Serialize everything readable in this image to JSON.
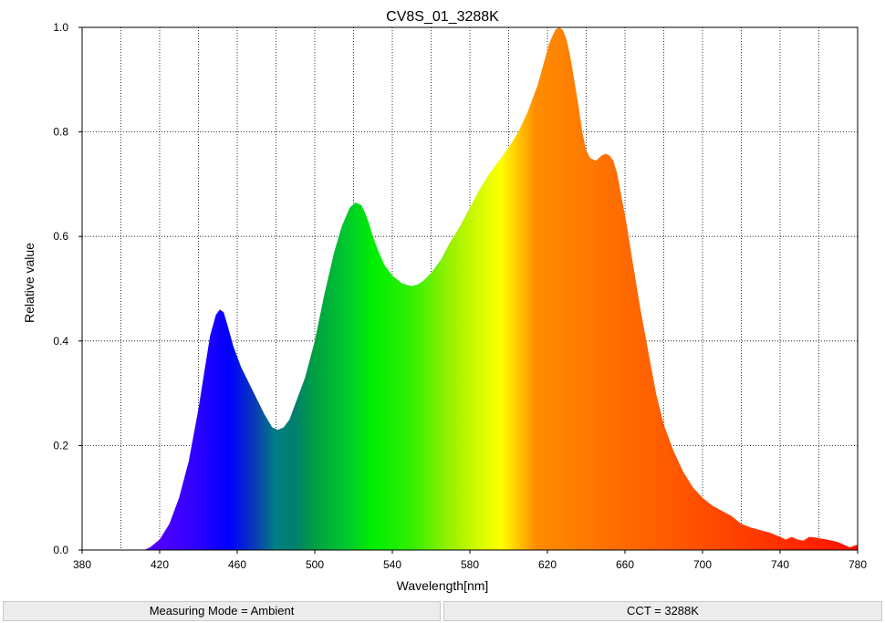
{
  "chart_data": {
    "type": "area",
    "title": "CV8S_01_3288K",
    "xlabel": "Wavelength[nm]",
    "ylabel": "Relative value",
    "xlim": [
      380,
      780
    ],
    "ylim": [
      0,
      1.0
    ],
    "grid": true,
    "x_ticks": [
      380,
      420,
      460,
      500,
      540,
      580,
      620,
      660,
      700,
      740,
      780
    ],
    "x_tick_labels": [
      "380",
      "420",
      "460",
      "500",
      "540",
      "580",
      "620",
      "660",
      "700",
      "740",
      "780"
    ],
    "y_ticks": [
      0,
      0.2,
      0.4,
      0.6,
      0.8,
      1.0
    ],
    "y_tick_labels": [
      "0.0",
      "0.2",
      "0.4",
      "0.6",
      "0.8",
      "1.0"
    ],
    "x_grid": [
      400,
      420,
      440,
      460,
      480,
      500,
      520,
      540,
      560,
      580,
      600,
      620,
      640,
      660,
      680,
      700,
      720,
      740,
      760,
      780
    ],
    "series": [
      {
        "x": [
          412,
          415,
          420,
          425,
          430,
          435,
          440,
          443,
          446,
          449,
          451,
          453,
          455,
          458,
          462,
          466,
          470,
          474,
          478,
          481,
          484,
          487,
          490,
          495,
          500,
          505,
          510,
          514,
          518,
          521,
          524,
          526,
          528,
          530,
          533,
          536,
          540,
          545,
          550,
          553,
          556,
          560,
          565,
          570,
          575,
          580,
          585,
          590,
          595,
          600,
          605,
          610,
          615,
          618,
          621,
          624,
          626,
          628,
          630,
          632,
          634,
          636,
          638,
          640,
          642,
          645,
          648,
          650,
          652,
          654,
          656,
          658,
          661,
          664,
          668,
          672,
          676,
          680,
          685,
          690,
          695,
          700,
          705,
          710,
          715,
          720,
          725,
          730,
          735,
          740,
          743,
          746,
          749,
          752,
          755,
          758,
          761,
          764,
          767,
          770,
          773,
          776,
          778,
          780
        ],
        "values": [
          0.0,
          0.005,
          0.02,
          0.05,
          0.1,
          0.17,
          0.27,
          0.34,
          0.41,
          0.45,
          0.46,
          0.455,
          0.43,
          0.39,
          0.35,
          0.32,
          0.29,
          0.26,
          0.235,
          0.23,
          0.235,
          0.25,
          0.28,
          0.33,
          0.4,
          0.49,
          0.57,
          0.62,
          0.655,
          0.665,
          0.66,
          0.645,
          0.625,
          0.6,
          0.57,
          0.545,
          0.525,
          0.51,
          0.505,
          0.508,
          0.515,
          0.53,
          0.555,
          0.59,
          0.62,
          0.655,
          0.69,
          0.72,
          0.745,
          0.77,
          0.8,
          0.84,
          0.89,
          0.93,
          0.97,
          0.995,
          1.0,
          0.995,
          0.975,
          0.94,
          0.895,
          0.85,
          0.8,
          0.765,
          0.75,
          0.745,
          0.755,
          0.758,
          0.755,
          0.745,
          0.72,
          0.68,
          0.62,
          0.55,
          0.46,
          0.38,
          0.3,
          0.24,
          0.19,
          0.15,
          0.12,
          0.1,
          0.085,
          0.075,
          0.065,
          0.05,
          0.043,
          0.038,
          0.033,
          0.025,
          0.02,
          0.025,
          0.02,
          0.018,
          0.025,
          0.024,
          0.022,
          0.02,
          0.018,
          0.015,
          0.01,
          0.005,
          0.008,
          0.01
        ]
      }
    ]
  },
  "status": {
    "left": "Measuring Mode = Ambient",
    "right": "CCT = 3288K"
  }
}
